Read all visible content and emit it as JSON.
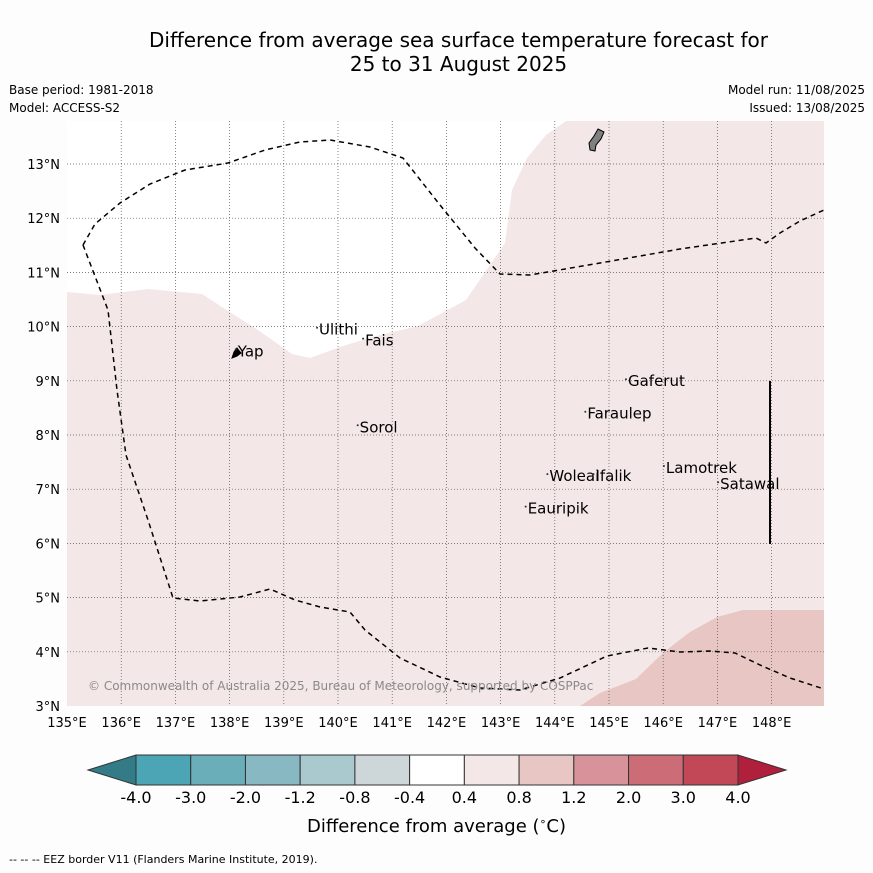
{
  "title": {
    "line1": "Difference from average sea surface temperature forecast for",
    "line2": "25 to 31 August 2025"
  },
  "meta": {
    "base_period": "Base period: 1981-2018",
    "model": "Model: ACCESS-S2",
    "model_run": "Model run: 11/08/2025",
    "issued": "Issued: 13/08/2025"
  },
  "copyright": "© Commonwealth of Australia 2025, Bureau of Meteorology, supported by COSPPac",
  "axes": {
    "x_ticks": [
      "135°E",
      "136°E",
      "137°E",
      "138°E",
      "139°E",
      "140°E",
      "141°E",
      "142°E",
      "143°E",
      "144°E",
      "145°E",
      "146°E",
      "147°E",
      "148°E"
    ],
    "y_ticks": [
      "3°N",
      "4°N",
      "5°N",
      "6°N",
      "7°N",
      "8°N",
      "9°N",
      "10°N",
      "11°N",
      "12°N",
      "13°N"
    ]
  },
  "islands": [
    {
      "name": "Ulithi",
      "lon": 139.65,
      "lat": 9.85
    },
    {
      "name": "Fais",
      "lon": 140.5,
      "lat": 9.65
    },
    {
      "name": "Yap",
      "lon": 138.15,
      "lat": 9.45
    },
    {
      "name": "Gaferut",
      "lon": 145.35,
      "lat": 8.9
    },
    {
      "name": "Faraulep",
      "lon": 144.6,
      "lat": 8.3
    },
    {
      "name": "Sorol",
      "lon": 140.4,
      "lat": 8.05
    },
    {
      "name": "Lamotrek",
      "lon": 146.05,
      "lat": 7.3
    },
    {
      "name": "Woleai",
      "lon": 143.9,
      "lat": 7.15
    },
    {
      "name": "Ifalik",
      "lon": 144.75,
      "lat": 7.15
    },
    {
      "name": "Satawal",
      "lon": 147.05,
      "lat": 7.0
    },
    {
      "name": "Eauripik",
      "lon": 143.5,
      "lat": 6.55
    }
  ],
  "colorbar": {
    "ticks": [
      "-4.0",
      "-3.0",
      "-2.0",
      "-1.2",
      "-0.8",
      "-0.4",
      "0.4",
      "0.8",
      "1.2",
      "2.0",
      "3.0",
      "4.0"
    ],
    "colors": [
      "#4ba5b4",
      "#6aaeba",
      "#88b8c2",
      "#a9c9ce",
      "#cdd6d9",
      "#ffffff",
      "#f4e7e7",
      "#e8c6c3",
      "#d8939a",
      "#cc6c76",
      "#c24858"
    ],
    "under_color": "#347b88",
    "over_color": "#b0203c",
    "label": "Difference from average (",
    "unit": "C",
    "label_end": ")"
  },
  "footer": "--  --  -- EEZ border V11 (Flanders Marine Institute, 2019).",
  "map_colors": {
    "warm_light": "#f4e7e7",
    "warm_mid": "#e8c6c3",
    "neutral": "#ffffff",
    "land": "#808080"
  }
}
